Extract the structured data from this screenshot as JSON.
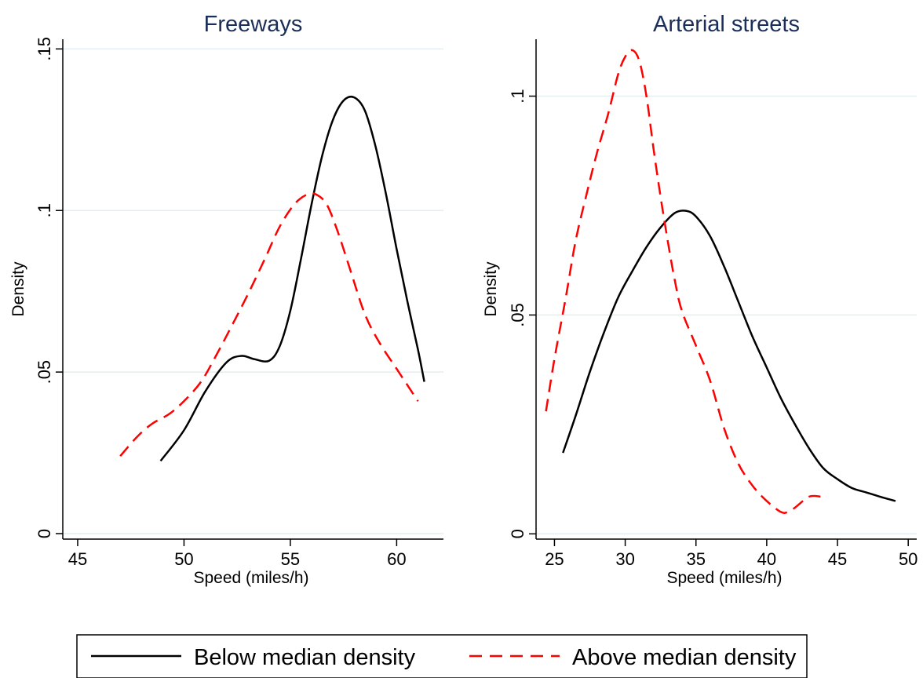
{
  "chart_data": [
    {
      "type": "line",
      "title": "Freeways",
      "xlabel": "Speed (miles/h)",
      "ylabel": "Density",
      "xlim": [
        44.3,
        62.2
      ],
      "ylim": [
        -0.0017,
        0.153
      ],
      "xticks": [
        45,
        50,
        55,
        60
      ],
      "xtick_labels": [
        "45",
        "50",
        "55",
        "60"
      ],
      "yticks": [
        0,
        0.05,
        0.1,
        0.15
      ],
      "ytick_labels": [
        "0",
        ".05",
        ".1",
        ".15"
      ],
      "grid": true,
      "series": [
        {
          "name": "Below median density",
          "color": "#000000",
          "dash": "solid",
          "x": [
            48.9,
            50.0,
            51.0,
            52.0,
            52.7,
            53.3,
            54.0,
            54.5,
            55.0,
            55.5,
            56.0,
            56.5,
            57.0,
            57.5,
            58.0,
            58.5,
            59.0,
            59.5,
            60.0,
            60.5,
            61.0,
            61.3
          ],
          "y": [
            0.0225,
            0.032,
            0.044,
            0.053,
            0.055,
            0.054,
            0.0535,
            0.058,
            0.069,
            0.085,
            0.102,
            0.117,
            0.128,
            0.134,
            0.135,
            0.131,
            0.12,
            0.105,
            0.088,
            0.072,
            0.057,
            0.047
          ]
        },
        {
          "name": "Above median density",
          "color": "#ff0000",
          "dash": "dashed",
          "x": [
            47.0,
            47.8,
            48.5,
            49.3,
            50.0,
            50.8,
            51.5,
            52.3,
            53.0,
            53.8,
            54.5,
            55.2,
            55.8,
            56.2,
            56.7,
            57.2,
            57.8,
            58.5,
            59.2,
            60.0,
            60.5,
            61.0
          ],
          "y": [
            0.024,
            0.03,
            0.034,
            0.037,
            0.041,
            0.047,
            0.055,
            0.065,
            0.074,
            0.085,
            0.095,
            0.102,
            0.105,
            0.105,
            0.102,
            0.094,
            0.082,
            0.068,
            0.059,
            0.051,
            0.046,
            0.041
          ]
        }
      ]
    },
    {
      "type": "line",
      "title": "Arterial streets",
      "xlabel": "Speed (miles/h)",
      "ylabel": "Density",
      "xlim": [
        23.7,
        50.6
      ],
      "ylim": [
        -0.0012,
        0.113
      ],
      "xticks": [
        25,
        30,
        35,
        40,
        45,
        50
      ],
      "xtick_labels": [
        "25",
        "30",
        "35",
        "40",
        "45",
        "50"
      ],
      "yticks": [
        0,
        0.05,
        0.1
      ],
      "ytick_labels": [
        "0",
        ".05",
        ".1"
      ],
      "grid": true,
      "series": [
        {
          "name": "Below median density",
          "color": "#000000",
          "dash": "solid",
          "x": [
            25.6,
            26.5,
            27.5,
            28.5,
            29.5,
            30.5,
            31.5,
            32.5,
            33.5,
            34.3,
            35.0,
            36.0,
            37.0,
            38.0,
            39.0,
            40.0,
            41.0,
            42.0,
            43.0,
            44.0,
            45.0,
            46.0,
            47.0,
            48.0,
            49.1
          ],
          "y": [
            0.0185,
            0.027,
            0.037,
            0.046,
            0.054,
            0.06,
            0.0655,
            0.07,
            0.0733,
            0.0738,
            0.0725,
            0.068,
            0.061,
            0.053,
            0.045,
            0.038,
            0.031,
            0.025,
            0.0195,
            0.015,
            0.0125,
            0.0105,
            0.0095,
            0.0085,
            0.0075
          ]
        },
        {
          "name": "Above median density",
          "color": "#ff0000",
          "dash": "dashed",
          "x": [
            24.4,
            25.0,
            25.8,
            26.5,
            27.3,
            28.0,
            28.8,
            29.5,
            30.0,
            30.5,
            31.0,
            31.5,
            32.0,
            32.5,
            33.0,
            33.5,
            34.0,
            35.0,
            36.0,
            37.0,
            38.0,
            39.0,
            40.0,
            41.0,
            41.5,
            42.0,
            43.0,
            43.8
          ],
          "y": [
            0.028,
            0.04,
            0.054,
            0.067,
            0.078,
            0.087,
            0.096,
            0.105,
            0.109,
            0.1105,
            0.108,
            0.1,
            0.088,
            0.077,
            0.067,
            0.058,
            0.051,
            0.043,
            0.035,
            0.024,
            0.016,
            0.011,
            0.0075,
            0.005,
            0.005,
            0.006,
            0.0085,
            0.0085
          ]
        }
      ]
    }
  ],
  "legend": {
    "placement": "bottom",
    "entries": [
      {
        "label": "Below median density",
        "color": "#000000",
        "dash": "solid"
      },
      {
        "label": "Above median density",
        "color": "#ff0000",
        "dash": "dashed"
      }
    ]
  },
  "colors": {
    "title": "#1a2e5a",
    "grid": "#e4edef",
    "axis": "#000000"
  }
}
